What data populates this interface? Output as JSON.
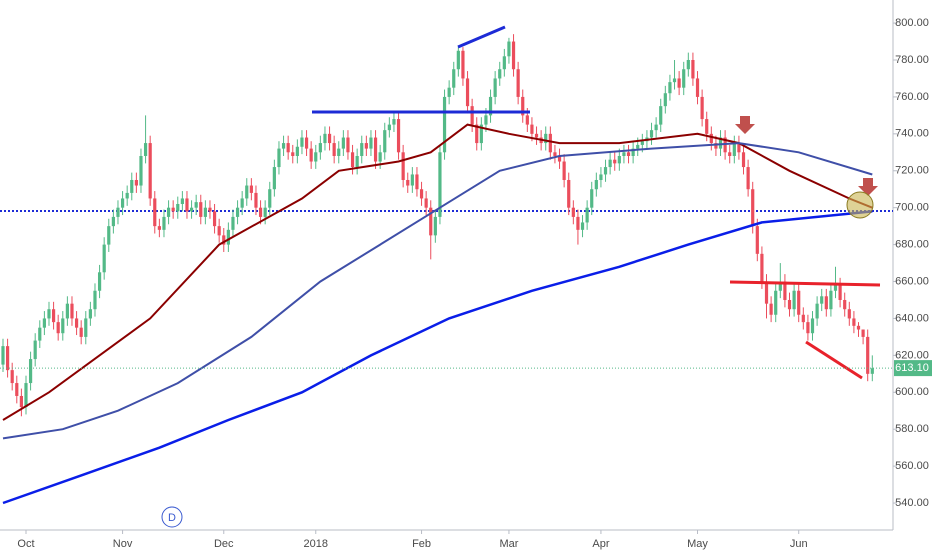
{
  "chart_data": {
    "type": "candlestick",
    "open": [
      615,
      625,
      612,
      605,
      598,
      592,
      605,
      618,
      628,
      635,
      640,
      645,
      638,
      632,
      640,
      648,
      640,
      635,
      630,
      640,
      645,
      655,
      665,
      680,
      690,
      695,
      700,
      705,
      708,
      715,
      712,
      728,
      735,
      705,
      690,
      688,
      695,
      700,
      698,
      702,
      705,
      698,
      700,
      703,
      695,
      700,
      698,
      690,
      685,
      680,
      688,
      695,
      700,
      705,
      712,
      708,
      700,
      695,
      700,
      710,
      722,
      732,
      735,
      730,
      728,
      733,
      738,
      732,
      725,
      730,
      735,
      740,
      735,
      728,
      732,
      738,
      730,
      722,
      728,
      735,
      732,
      738,
      725,
      730,
      742,
      745,
      748,
      730,
      715,
      712,
      718,
      710,
      705,
      700,
      685,
      695,
      730,
      760,
      765,
      775,
      785,
      770,
      755,
      745,
      735,
      745,
      750,
      760,
      770,
      775,
      782,
      790,
      775,
      760,
      750,
      745,
      740,
      738,
      735,
      740,
      730,
      728,
      725,
      715,
      700,
      695,
      688,
      692,
      700,
      710,
      715,
      718,
      722,
      726,
      724,
      728,
      730,
      728,
      732,
      734,
      736,
      738,
      742,
      745,
      755,
      762,
      768,
      770,
      765,
      775,
      780,
      770,
      760,
      748,
      740,
      735,
      732,
      738,
      730,
      728,
      735,
      730,
      722,
      710,
      690,
      675,
      660,
      648,
      642,
      655,
      660,
      650,
      645,
      655,
      642,
      638,
      632,
      640,
      648,
      652,
      645,
      655,
      658,
      650,
      645,
      640,
      636,
      634,
      630,
      610
    ],
    "high": [
      629,
      629,
      616,
      609,
      602,
      609,
      622,
      632,
      639,
      644,
      649,
      649,
      642,
      644,
      652,
      652,
      644,
      639,
      644,
      649,
      659,
      669,
      684,
      694,
      699,
      704,
      709,
      712,
      719,
      719,
      732,
      750,
      739,
      709,
      694,
      699,
      704,
      704,
      706,
      709,
      709,
      704,
      707,
      707,
      704,
      704,
      702,
      694,
      689,
      692,
      699,
      704,
      709,
      716,
      716,
      712,
      704,
      704,
      714,
      726,
      736,
      739,
      739,
      734,
      737,
      742,
      742,
      736,
      734,
      739,
      744,
      744,
      739,
      736,
      742,
      742,
      734,
      732,
      739,
      739,
      742,
      742,
      734,
      746,
      749,
      752,
      752,
      734,
      719,
      722,
      722,
      714,
      709,
      704,
      699,
      734,
      764,
      769,
      779,
      787,
      787,
      774,
      759,
      749,
      749,
      754,
      764,
      774,
      779,
      786,
      792,
      794,
      779,
      764,
      754,
      749,
      744,
      742,
      744,
      744,
      734,
      732,
      729,
      719,
      704,
      699,
      696,
      704,
      714,
      719,
      722,
      726,
      730,
      730,
      732,
      734,
      734,
      736,
      738,
      740,
      742,
      746,
      749,
      759,
      766,
      772,
      780,
      774,
      779,
      784,
      784,
      774,
      764,
      752,
      744,
      739,
      742,
      742,
      734,
      739,
      739,
      734,
      726,
      714,
      694,
      679,
      664,
      652,
      659,
      670,
      664,
      654,
      659,
      659,
      646,
      642,
      644,
      652,
      656,
      656,
      659,
      668,
      662,
      654,
      649,
      644,
      638,
      634,
      634,
      620
    ],
    "low": [
      611,
      608,
      601,
      594,
      587,
      588,
      601,
      614,
      624,
      631,
      636,
      634,
      628,
      628,
      636,
      636,
      631,
      626,
      626,
      636,
      641,
      651,
      661,
      676,
      686,
      691,
      696,
      701,
      704,
      708,
      708,
      724,
      701,
      686,
      684,
      684,
      691,
      694,
      694,
      698,
      694,
      694,
      696,
      691,
      691,
      694,
      686,
      681,
      676,
      676,
      684,
      691,
      696,
      701,
      704,
      696,
      691,
      691,
      696,
      706,
      718,
      728,
      726,
      724,
      724,
      729,
      728,
      721,
      721,
      726,
      731,
      731,
      724,
      724,
      728,
      726,
      718,
      718,
      724,
      728,
      728,
      721,
      721,
      726,
      738,
      741,
      726,
      711,
      708,
      708,
      706,
      701,
      696,
      672,
      681,
      691,
      726,
      756,
      761,
      771,
      766,
      751,
      741,
      731,
      731,
      741,
      746,
      756,
      766,
      771,
      778,
      771,
      756,
      746,
      741,
      736,
      734,
      731,
      731,
      726,
      724,
      721,
      711,
      696,
      691,
      680,
      684,
      688,
      696,
      706,
      711,
      714,
      718,
      720,
      720,
      724,
      724,
      724,
      728,
      730,
      732,
      734,
      738,
      741,
      751,
      758,
      764,
      761,
      761,
      771,
      766,
      756,
      744,
      736,
      731,
      728,
      728,
      726,
      724,
      724,
      726,
      718,
      706,
      686,
      671,
      656,
      640,
      638,
      638,
      651,
      646,
      641,
      641,
      638,
      634,
      628,
      628,
      636,
      644,
      641,
      641,
      651,
      646,
      641,
      636,
      632,
      630,
      626,
      606,
      606
    ],
    "close": [
      625,
      612,
      605,
      598,
      592,
      605,
      618,
      628,
      635,
      640,
      645,
      638,
      632,
      640,
      648,
      640,
      635,
      630,
      640,
      645,
      655,
      665,
      680,
      690,
      695,
      700,
      705,
      708,
      715,
      712,
      728,
      735,
      705,
      690,
      688,
      695,
      700,
      698,
      702,
      705,
      698,
      700,
      703,
      695,
      700,
      698,
      690,
      685,
      680,
      688,
      695,
      700,
      705,
      712,
      708,
      700,
      695,
      700,
      710,
      722,
      732,
      735,
      730,
      728,
      733,
      738,
      732,
      725,
      730,
      735,
      740,
      735,
      728,
      732,
      738,
      730,
      722,
      728,
      735,
      732,
      738,
      725,
      730,
      742,
      745,
      748,
      730,
      715,
      712,
      718,
      710,
      705,
      700,
      685,
      695,
      730,
      760,
      765,
      775,
      785,
      770,
      755,
      745,
      735,
      745,
      750,
      760,
      770,
      775,
      782,
      790,
      775,
      760,
      750,
      745,
      740,
      738,
      735,
      740,
      730,
      728,
      725,
      715,
      700,
      695,
      688,
      692,
      700,
      710,
      715,
      718,
      722,
      726,
      724,
      728,
      730,
      728,
      732,
      734,
      736,
      738,
      742,
      745,
      755,
      762,
      768,
      770,
      765,
      775,
      780,
      770,
      760,
      748,
      740,
      735,
      732,
      738,
      730,
      728,
      735,
      730,
      722,
      710,
      690,
      675,
      660,
      648,
      642,
      655,
      660,
      650,
      645,
      655,
      642,
      638,
      632,
      640,
      648,
      652,
      645,
      655,
      658,
      650,
      645,
      640,
      636,
      634,
      630,
      610,
      613
    ],
    "up_color": "#53b987",
    "down_color": "#eb4d5c",
    "series": [
      {
        "color": "#8b0000",
        "x": [
          0,
          10,
          32,
          47,
          65,
          73,
          86,
          93,
          101,
          110,
          121,
          134,
          151,
          160,
          171,
          184,
          189
        ],
        "values": [
          585,
          600,
          640,
          680,
          705,
          720,
          725,
          730,
          745,
          740,
          735,
          735,
          740,
          735,
          720,
          705,
          700
        ]
      },
      {
        "color": "#3f4fa8",
        "x": [
          0,
          13,
          25,
          38,
          54,
          69,
          82,
          95,
          108,
          121,
          141,
          160,
          173,
          189
        ],
        "values": [
          575,
          580,
          590,
          605,
          630,
          660,
          680,
          700,
          720,
          728,
          732,
          735,
          730,
          718
        ]
      },
      {
        "color": "#0a1ee8",
        "x": [
          0,
          17,
          34,
          49,
          65,
          80,
          97,
          115,
          134,
          149,
          165,
          189
        ],
        "values": [
          540,
          555,
          570,
          585,
          600,
          620,
          640,
          655,
          668,
          680,
          692,
          698
        ]
      }
    ],
    "last_price": {
      "value": 613.1,
      "label": "613.10"
    },
    "marker": "D",
    "xlim": [
      -0.65,
      193.5
    ],
    "ylim": [
      525.4,
      812.5
    ],
    "xticks": [
      {
        "value": 5,
        "label": "Oct"
      },
      {
        "value": 26,
        "label": "Nov"
      },
      {
        "value": 48,
        "label": "Dec"
      },
      {
        "value": 68,
        "label": "2018"
      },
      {
        "value": 91,
        "label": "Feb"
      },
      {
        "value": 110,
        "label": "Mar"
      },
      {
        "value": 130,
        "label": "Apr"
      },
      {
        "value": 151,
        "label": "May"
      },
      {
        "value": 173,
        "label": "Jun"
      }
    ],
    "yticks": [
      {
        "value": 540,
        "label": "540.00"
      },
      {
        "value": 560,
        "label": "560.00"
      },
      {
        "value": 580,
        "label": "580.00"
      },
      {
        "value": 600,
        "label": "600.00"
      },
      {
        "value": 620,
        "label": "620.00"
      },
      {
        "value": 640,
        "label": "640.00"
      },
      {
        "value": 660,
        "label": "660.00"
      },
      {
        "value": 680,
        "label": "680.00"
      },
      {
        "value": 700,
        "label": "700.00"
      },
      {
        "value": 720,
        "label": "720.00"
      },
      {
        "value": 740,
        "label": "740.00"
      },
      {
        "value": 760,
        "label": "760.00"
      },
      {
        "value": 780,
        "label": "780.00"
      },
      {
        "value": 800,
        "label": "800.00"
      }
    ],
    "grid": false
  }
}
